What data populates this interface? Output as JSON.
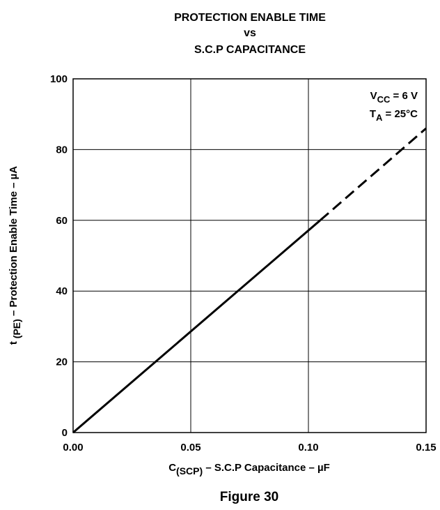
{
  "chart_data": {
    "type": "line",
    "title": [
      "PROTECTION ENABLE TIME",
      "vs",
      "S.C.P CAPACITANCE"
    ],
    "annotations": [
      {
        "main": "V",
        "sub": "CC",
        "rest": " = 6 V"
      },
      {
        "main": "T",
        "sub": "A",
        "rest": " = 25°C"
      }
    ],
    "x_label": {
      "main": "C",
      "sub": "(SCP)",
      "rest": " – S.C.P Capacitance – µF"
    },
    "y_label": {
      "main": "t",
      "sub": " (PE)",
      "rest": " – Protection Enable Time – µA"
    },
    "caption": "Figure 30",
    "series": [
      {
        "color": "#000000",
        "style": "solid",
        "x": [
          0,
          0.105
        ],
        "values": [
          0,
          60
        ]
      },
      {
        "color": "#000000",
        "style": "dashed",
        "x": [
          0.105,
          0.15
        ],
        "values": [
          60,
          86
        ]
      }
    ],
    "xlim": [
      0,
      0.15
    ],
    "xticks": [
      {
        "value": 0,
        "label": "0.00"
      },
      {
        "value": 0.05,
        "label": "0.05"
      },
      {
        "value": 0.1,
        "label": "0.10"
      },
      {
        "value": 0.15,
        "label": "0.15"
      }
    ],
    "ylim": [
      0,
      100
    ],
    "yticks": [
      0,
      20,
      40,
      60,
      80,
      100
    ],
    "grid": true
  }
}
